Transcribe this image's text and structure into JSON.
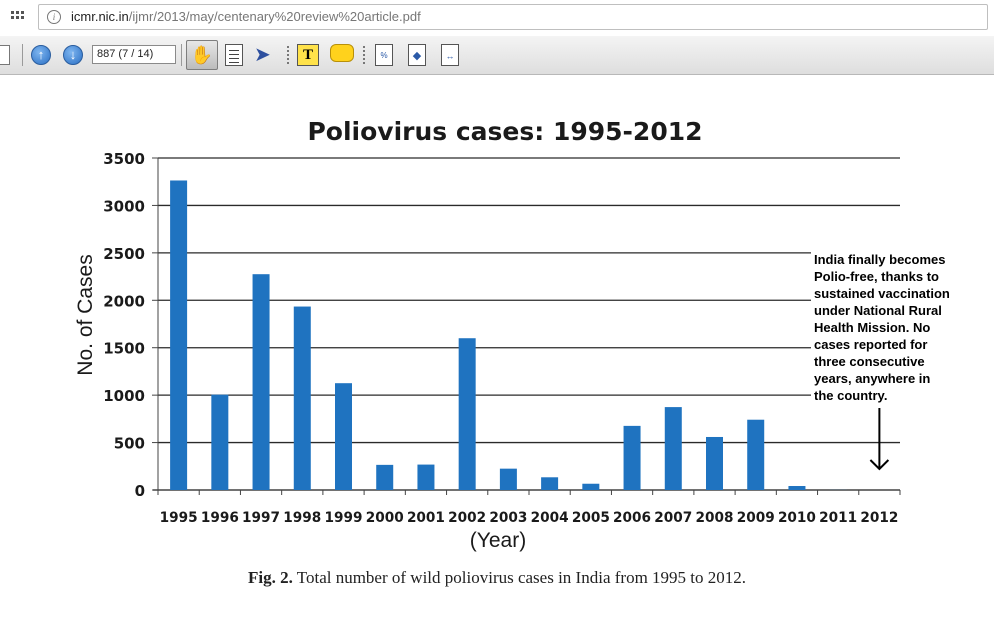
{
  "browser": {
    "url_host": "icmr.nic.in",
    "url_path": "/ijmr/2013/may/centenary%20review%20article.pdf"
  },
  "toolbar": {
    "page_field": "887 (7 / 14)"
  },
  "chart_data": {
    "type": "bar",
    "title": "Poliovirus cases: 1995-2012",
    "xlabel": "(Year)",
    "ylabel": "No. of Cases",
    "ylim": [
      0,
      3500
    ],
    "yticks": [
      0,
      500,
      1000,
      1500,
      2000,
      2500,
      3000,
      3500
    ],
    "grid": true,
    "categories": [
      "1995",
      "1996",
      "1997",
      "1998",
      "1999",
      "2000",
      "2001",
      "2002",
      "2003",
      "2004",
      "2005",
      "2006",
      "2007",
      "2008",
      "2009",
      "2010",
      "2011",
      "2012"
    ],
    "values": [
      3263,
      1005,
      2275,
      1934,
      1126,
      265,
      268,
      1600,
      225,
      134,
      66,
      676,
      874,
      559,
      741,
      42,
      1,
      0
    ],
    "bar_color": "#1f73c0",
    "annotation": {
      "lines": [
        "India finally becomes",
        "Polio-free, thanks to",
        "sustained vaccination",
        "under National Rural",
        "Health Mission. No",
        "cases reported for",
        "three consecutive",
        "years, anywhere in",
        "the country."
      ],
      "points_to": "2012"
    }
  },
  "caption": {
    "label": "Fig. 2.",
    "text": " Total number of wild poliovirus cases in India from 1995 to 2012."
  }
}
